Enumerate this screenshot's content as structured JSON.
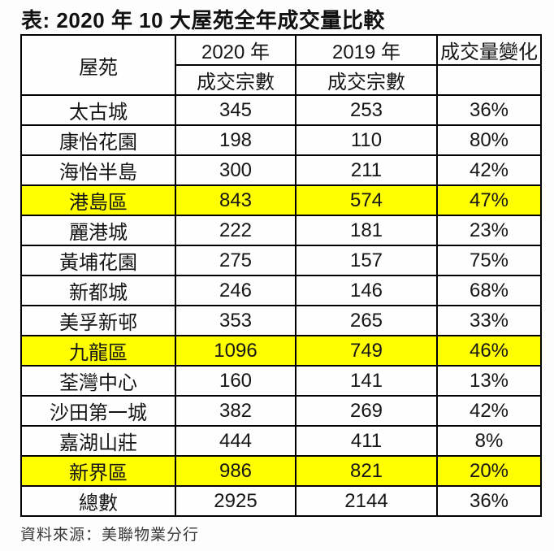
{
  "page": {
    "title": "表: 2020 年 10 大屋苑全年成交量比較",
    "source": "資料來源：美聯物業分行"
  },
  "table": {
    "headers": {
      "estate": "屋苑",
      "year_2020": "2020 年",
      "year_2019": "2019 年",
      "change": "成交量變化",
      "subheader_2020": "成交宗數",
      "subheader_2019": "成交宗數",
      "subheader_change": ""
    },
    "rows": [
      {
        "name": "太古城",
        "y2020": "345",
        "y2019": "253",
        "change": "36%",
        "highlight": false
      },
      {
        "name": "康怡花園",
        "y2020": "198",
        "y2019": "110",
        "change": "80%",
        "highlight": false
      },
      {
        "name": "海怡半島",
        "y2020": "300",
        "y2019": "211",
        "change": "42%",
        "highlight": false
      },
      {
        "name": "港島區",
        "y2020": "843",
        "y2019": "574",
        "change": "47%",
        "highlight": true
      },
      {
        "name": "麗港城",
        "y2020": "222",
        "y2019": "181",
        "change": "23%",
        "highlight": false
      },
      {
        "name": "黃埔花園",
        "y2020": "275",
        "y2019": "157",
        "change": "75%",
        "highlight": false
      },
      {
        "name": "新都城",
        "y2020": "246",
        "y2019": "146",
        "change": "68%",
        "highlight": false
      },
      {
        "name": "美孚新邨",
        "y2020": "353",
        "y2019": "265",
        "change": "33%",
        "highlight": false
      },
      {
        "name": "九龍區",
        "y2020": "1096",
        "y2019": "749",
        "change": "46%",
        "highlight": true
      },
      {
        "name": "荃灣中心",
        "y2020": "160",
        "y2019": "141",
        "change": "13%",
        "highlight": false
      },
      {
        "name": "沙田第一城",
        "y2020": "382",
        "y2019": "269",
        "change": "42%",
        "highlight": false
      },
      {
        "name": "嘉湖山莊",
        "y2020": "444",
        "y2019": "411",
        "change": "8%",
        "highlight": false
      },
      {
        "name": "新界區",
        "y2020": "986",
        "y2019": "821",
        "change": "20%",
        "highlight": true
      },
      {
        "name": "總數",
        "y2020": "2925",
        "y2019": "2144",
        "change": "36%",
        "highlight": false
      }
    ]
  },
  "colors": {
    "highlight": "#ffff00",
    "border": "#000000",
    "text": "#161616"
  },
  "chart_data": {
    "type": "table",
    "title": "表: 2020 年 10 大屋苑全年成交量比較",
    "columns": [
      "屋苑",
      "2020 年 成交宗數",
      "2019 年 成交宗數",
      "成交量變化"
    ],
    "rows": [
      [
        "太古城",
        345,
        253,
        "36%"
      ],
      [
        "康怡花園",
        198,
        110,
        "80%"
      ],
      [
        "海怡半島",
        300,
        211,
        "42%"
      ],
      [
        "港島區",
        843,
        574,
        "47%"
      ],
      [
        "麗港城",
        222,
        181,
        "23%"
      ],
      [
        "黃埔花園",
        275,
        157,
        "75%"
      ],
      [
        "新都城",
        246,
        146,
        "68%"
      ],
      [
        "美孚新邨",
        353,
        265,
        "33%"
      ],
      [
        "九龍區",
        1096,
        749,
        "46%"
      ],
      [
        "荃灣中心",
        160,
        141,
        "13%"
      ],
      [
        "沙田第一城",
        382,
        269,
        "42%"
      ],
      [
        "嘉湖山莊",
        444,
        411,
        "8%"
      ],
      [
        "新界區",
        986,
        821,
        "20%"
      ],
      [
        "總數",
        2925,
        2144,
        "36%"
      ]
    ],
    "highlighted_rows": [
      "港島區",
      "九龍區",
      "新界區"
    ],
    "highlight_color": "#ffff00",
    "source": "資料來源：美聯物業分行"
  }
}
